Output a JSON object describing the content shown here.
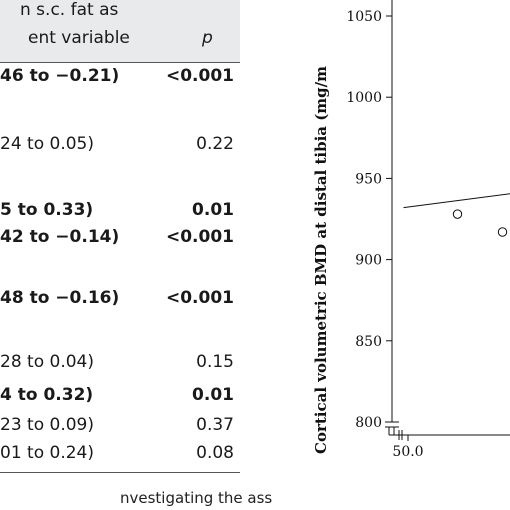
{
  "table": {
    "header_line1": "n s.c. fat as",
    "header_line2": "ent variable",
    "header_p": "p",
    "rows": [
      {
        "ci": "46 to −0.21)",
        "p": "<0.001",
        "bold": true
      },
      {
        "ci": "24 to 0.05)",
        "p": "0.22",
        "bold": false
      },
      {
        "ci": "5 to 0.33)",
        "p": "0.01",
        "bold": true
      },
      {
        "ci": "42 to −0.14)",
        "p": "<0.001",
        "bold": true
      },
      {
        "ci": "48 to −0.16)",
        "p": "<0.001",
        "bold": true
      },
      {
        "ci": "28 to 0.04)",
        "p": "0.15",
        "bold": false
      },
      {
        "ci": "4 to 0.32)",
        "p": "0.01",
        "bold": true
      },
      {
        "ci": "23 to 0.09)",
        "p": "0.37",
        "bold": false
      },
      {
        "ci": "01 to 0.24)",
        "p": "0.08",
        "bold": false
      }
    ],
    "footer_text": "nvestigating the associ-"
  },
  "chart_data": {
    "type": "scatter",
    "ylabel": "Cortical volumetric BMD at distal tibia (mg/m",
    "y_ticks": [
      "1050",
      "1000",
      "950",
      "900",
      "850",
      "800"
    ],
    "x_ticks": [
      "50.0"
    ],
    "ylim": [
      800,
      1050
    ],
    "points": [
      {
        "x": 51.1,
        "y": 928
      },
      {
        "x": 52.1,
        "y": 917
      }
    ],
    "trend_line": {
      "x": [
        49.9,
        53.5
      ],
      "y": [
        932,
        945
      ]
    }
  }
}
